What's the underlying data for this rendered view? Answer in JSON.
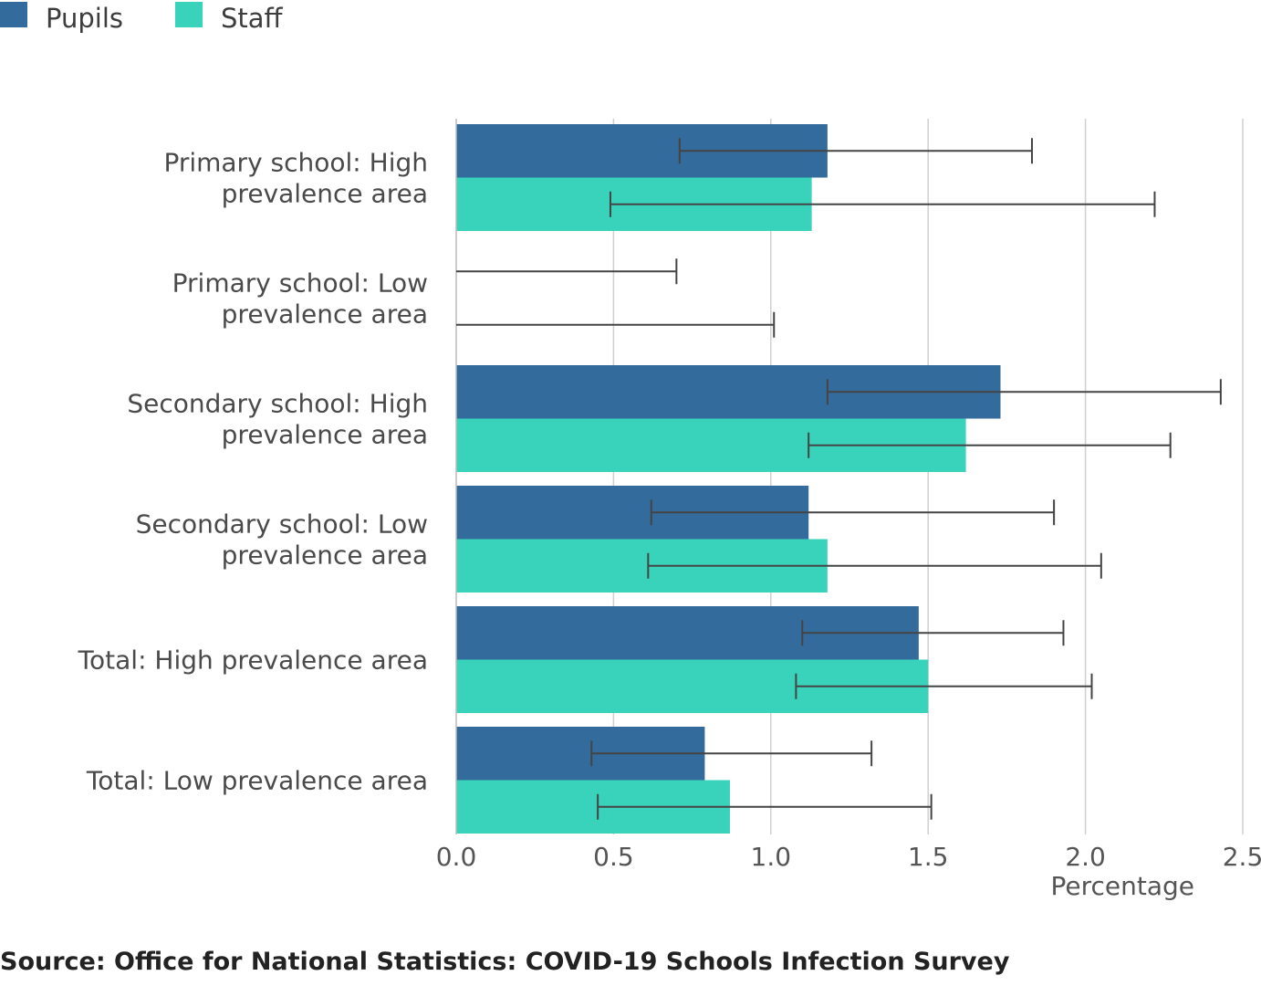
{
  "chart_data": {
    "type": "bar",
    "orientation": "horizontal",
    "categories": [
      [
        "Primary school: High",
        "prevalence area"
      ],
      [
        "Primary school: Low",
        "prevalence area"
      ],
      [
        "Secondary school: High",
        "prevalence area"
      ],
      [
        "Secondary school: Low",
        "prevalence area"
      ],
      [
        "Total: High prevalence area"
      ],
      [
        "Total: Low prevalence area"
      ]
    ],
    "series": [
      {
        "name": "Pupils",
        "color": "#336b9d",
        "values": [
          1.18,
          0,
          1.73,
          1.12,
          1.47,
          0.79
        ],
        "error_low": [
          0.71,
          0,
          1.18,
          0.62,
          1.1,
          0.43
        ],
        "error_high": [
          1.83,
          0.7,
          2.43,
          1.9,
          1.93,
          1.32
        ]
      },
      {
        "name": "Staff",
        "color": "#39d3bc",
        "values": [
          1.13,
          0,
          1.62,
          1.18,
          1.5,
          0.87
        ],
        "error_low": [
          0.49,
          0,
          1.12,
          0.61,
          1.08,
          0.45
        ],
        "error_high": [
          2.22,
          1.01,
          2.27,
          2.05,
          2.02,
          1.51
        ]
      }
    ],
    "xlabel": "Percentage",
    "ylabel": "",
    "xlim": [
      0,
      2.5
    ],
    "xticks": [
      0,
      0.5,
      1,
      1.5,
      2,
      2.5
    ],
    "xtick_labels": [
      "0.0",
      "0.5",
      "1.0",
      "1.5",
      "2.0",
      "2.5"
    ],
    "grid": "vertical",
    "legend_position": "top-left"
  },
  "source_note": "Source: Office for National Statistics: COVID-19 Schools Infection Survey"
}
